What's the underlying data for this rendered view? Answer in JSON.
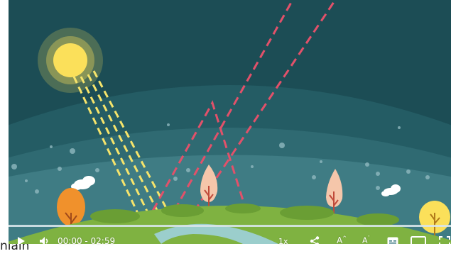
{
  "video": {
    "time_display": "00:00 - 02:59",
    "playback_speed": "1x",
    "font_increase_label": "A",
    "font_decrease_label": "A"
  },
  "page": {
    "partial_text": "niäln"
  },
  "icons": {
    "play": "play-icon",
    "volume": "volume-icon",
    "share": "share-icon",
    "captions": "captions-icon",
    "theater": "theater-mode-icon",
    "fullscreen": "fullscreen-icon"
  },
  "colors": {
    "sky_dark": "#1c4d55",
    "sky_mid": "#2c6770",
    "sky_light": "#3f7c84",
    "sun": "#fbe05a",
    "sun_rays": "#f6e46b",
    "reflected_rays": "#e2516a",
    "grass": "#7fb241",
    "tree_orange": "#f0912c",
    "tree_pink": "#f5c6aa"
  }
}
